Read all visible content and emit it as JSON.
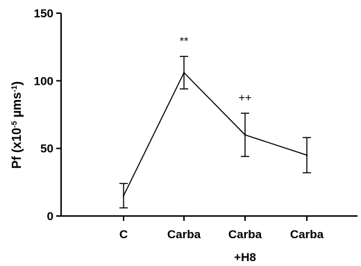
{
  "chart_data": {
    "type": "line",
    "categories": [
      "C",
      "Carba",
      "Carba",
      "Carba"
    ],
    "category_sublabels": [
      "",
      "",
      "+H8",
      ""
    ],
    "values": [
      15,
      106,
      60,
      45
    ],
    "errors": [
      9,
      12,
      16,
      13
    ],
    "annotations": [
      "",
      "**",
      "++",
      ""
    ],
    "ylabel": {
      "main": "Pf (x10",
      "sup1": "-5",
      "unit": " µms",
      "sup2": "-1",
      "close": ")"
    },
    "ylim": [
      0,
      150
    ],
    "yticks": [
      0,
      50,
      100,
      150
    ],
    "grid": false
  }
}
